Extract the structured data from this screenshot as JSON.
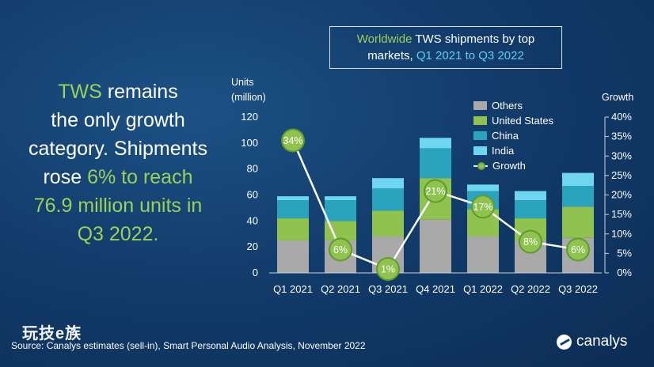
{
  "headline": {
    "line1_green": "TWS",
    "line1_rest": " remains",
    "line2": "the only growth",
    "line3": "category. Shipments",
    "line4_pre": "rose ",
    "line4_green": "6% to reach",
    "line5_green": "76.9 million units in",
    "line6_green": "Q3 2022."
  },
  "chart_data": {
    "type": "bar",
    "title_parts": {
      "a_green": "Worldwide",
      "b": " TWS shipments by top",
      "c": "markets, ",
      "d_cyan": "Q1 2021 to Q3 2022"
    },
    "ylabel_line1": "Units",
    "ylabel_line2": "(million)",
    "y2label": "Growth",
    "categories": [
      "Q1 2021",
      "Q2 2021",
      "Q3 2021",
      "Q4 2021",
      "Q1 2022",
      "Q2 2022",
      "Q3 2022"
    ],
    "ylim": [
      0,
      120
    ],
    "y_ticks": [
      0,
      20,
      40,
      60,
      80,
      100,
      120
    ],
    "y2lim": [
      0,
      40
    ],
    "y2_ticks": [
      "0%",
      "5%",
      "10%",
      "15%",
      "20%",
      "25%",
      "30%",
      "35%",
      "40%"
    ],
    "series": [
      {
        "name": "Others",
        "color": "#a9a9a9",
        "values": [
          25,
          25,
          28,
          41,
          28,
          25,
          27
        ]
      },
      {
        "name": "United States",
        "color": "#8fc24f",
        "values": [
          17,
          15,
          20,
          32,
          21,
          17,
          24
        ]
      },
      {
        "name": "China",
        "color": "#2aa3bf",
        "values": [
          14,
          16,
          17,
          23,
          14,
          14,
          16
        ]
      },
      {
        "name": "India",
        "color": "#6fd6f0",
        "values": [
          3,
          3,
          8,
          8,
          5,
          7,
          10
        ]
      }
    ],
    "line_series": {
      "name": "Growth",
      "values": [
        34,
        6,
        1,
        21,
        17,
        8,
        6
      ],
      "labels": [
        "34%",
        "6%",
        "1%",
        "21%",
        "17%",
        "8%",
        "6%"
      ]
    },
    "legend_position": "top-right",
    "grid": false
  },
  "legend": {
    "others": "Others",
    "us": "United States",
    "china": "China",
    "india": "India",
    "growth": "Growth"
  },
  "source": "Source: Canalys estimates (sell-in), Smart Personal Audio Analysis, November 2022",
  "watermark": "玩技e族",
  "logo": "canalys"
}
